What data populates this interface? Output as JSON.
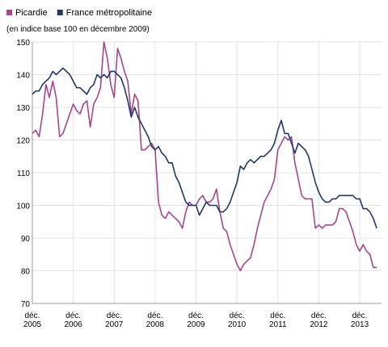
{
  "chart_data": {
    "type": "line",
    "subtitle": "(en indice base 100 en décembre 2009)",
    "x": [
      2005.917,
      2006.0,
      2006.083,
      2006.167,
      2006.25,
      2006.333,
      2006.417,
      2006.5,
      2006.583,
      2006.667,
      2006.75,
      2006.833,
      2006.917,
      2007.0,
      2007.083,
      2007.167,
      2007.25,
      2007.333,
      2007.417,
      2007.5,
      2007.583,
      2007.667,
      2007.75,
      2007.833,
      2007.917,
      2008.0,
      2008.083,
      2008.167,
      2008.25,
      2008.333,
      2008.417,
      2008.5,
      2008.583,
      2008.667,
      2008.75,
      2008.833,
      2008.917,
      2009.0,
      2009.083,
      2009.167,
      2009.25,
      2009.333,
      2009.417,
      2009.5,
      2009.583,
      2009.667,
      2009.75,
      2009.833,
      2009.917,
      2010.0,
      2010.083,
      2010.167,
      2010.25,
      2010.333,
      2010.417,
      2010.5,
      2010.583,
      2010.667,
      2010.75,
      2010.833,
      2010.917,
      2011.0,
      2011.083,
      2011.167,
      2011.25,
      2011.333,
      2011.417,
      2011.5,
      2011.583,
      2011.667,
      2011.75,
      2011.833,
      2011.917,
      2012.0,
      2012.083,
      2012.167,
      2012.25,
      2012.333,
      2012.417,
      2012.5,
      2012.583,
      2012.667,
      2012.75,
      2012.833,
      2012.917,
      2013.0,
      2013.083,
      2013.167,
      2013.25,
      2013.333,
      2013.417,
      2013.5,
      2013.583,
      2013.667,
      2013.75,
      2013.833,
      2013.917,
      2014.0,
      2014.083,
      2014.167,
      2014.25,
      2014.333
    ],
    "series": [
      {
        "name": "Picardie",
        "color": "#a5458f",
        "values": [
          122,
          123,
          121,
          128,
          137,
          133,
          138,
          133,
          121,
          122,
          125,
          128,
          131,
          129,
          128,
          131,
          132,
          124,
          131,
          133,
          136,
          150,
          145,
          137,
          133,
          148,
          145,
          141,
          138,
          128,
          134,
          132,
          117,
          117,
          118,
          119,
          117,
          101,
          97,
          96,
          98,
          97,
          96,
          95,
          93,
          98,
          101,
          100,
          100,
          102,
          103,
          101,
          101,
          102,
          105,
          98,
          93,
          92,
          88,
          85,
          82,
          80,
          82,
          83,
          84,
          88,
          93,
          97,
          101,
          103,
          105,
          108,
          117,
          119,
          121,
          120,
          121,
          113,
          108,
          103,
          102,
          102,
          102,
          93,
          94,
          93,
          94,
          94,
          94,
          95,
          99,
          99,
          98,
          95,
          92,
          88,
          86,
          88,
          86,
          85,
          81,
          81
        ]
      },
      {
        "name": "France métropolitaine",
        "color": "#1f3864",
        "values": [
          134,
          135,
          135,
          137,
          138,
          139,
          141,
          140,
          141,
          142,
          141,
          140,
          138,
          136,
          136,
          135,
          134,
          136,
          137,
          140,
          139,
          140,
          139,
          141,
          141,
          140,
          139,
          136,
          132,
          127,
          130,
          127,
          125,
          123,
          121,
          118,
          117,
          118,
          116,
          115,
          113,
          113,
          109,
          107,
          104,
          101,
          100,
          100,
          100,
          97,
          99,
          101,
          100,
          100,
          100,
          98,
          98,
          99,
          101,
          104,
          107,
          112,
          111,
          113,
          114,
          113,
          114,
          115,
          115,
          116,
          117,
          119,
          123,
          126,
          122,
          122,
          119,
          116,
          119,
          118,
          117,
          115,
          111,
          107,
          104,
          102,
          101,
          101,
          102,
          102,
          103,
          103,
          103,
          103,
          103,
          102,
          102,
          99,
          99,
          98,
          96,
          93
        ]
      }
    ],
    "xlim": [
      2005.917,
      2014.45
    ],
    "xticks": [
      {
        "value": 2005.917,
        "label": "déc. 2005"
      },
      {
        "value": 2006.917,
        "label": "déc. 2006"
      },
      {
        "value": 2007.917,
        "label": "déc. 2007"
      },
      {
        "value": 2008.917,
        "label": "déc. 2008"
      },
      {
        "value": 2009.917,
        "label": "déc. 2009"
      },
      {
        "value": 2010.917,
        "label": "déc. 2010"
      },
      {
        "value": 2011.917,
        "label": "déc. 2011"
      },
      {
        "value": 2012.917,
        "label": "déc. 2012"
      },
      {
        "value": 2013.917,
        "label": "déc. 2013"
      }
    ],
    "ylim": [
      70,
      150
    ],
    "yticks": [
      70,
      80,
      90,
      100,
      110,
      120,
      130,
      140,
      150
    ],
    "grid": true
  }
}
